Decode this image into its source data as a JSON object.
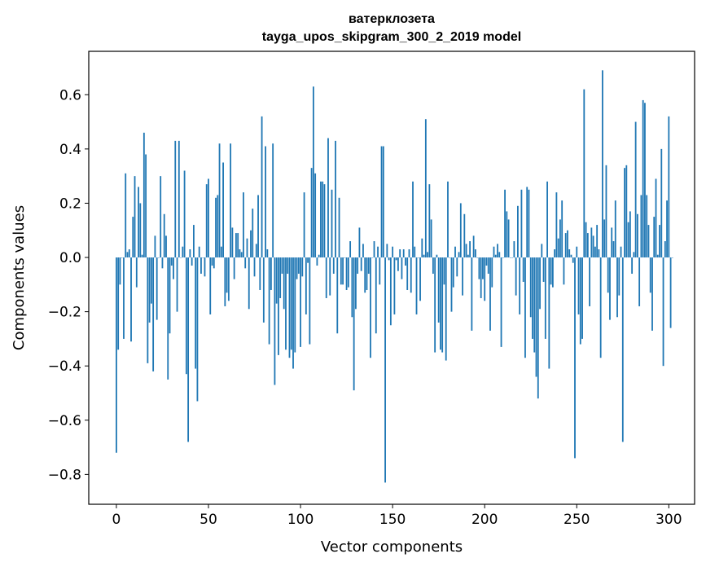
{
  "chart_data": {
    "type": "bar",
    "title": "ватерклозета",
    "subtitle": "tayga_upos_skipgram_300_2_2019 model",
    "xlabel": "Vector components",
    "ylabel": "Components values",
    "xlim": [
      -15,
      314
    ],
    "ylim": [
      -0.91,
      0.76
    ],
    "xticks": [
      0,
      50,
      100,
      150,
      200,
      250,
      300
    ],
    "yticks": [
      -0.8,
      -0.6,
      -0.4,
      -0.2,
      0.0,
      0.2,
      0.4,
      0.6
    ],
    "ytick_labels": [
      "−0.8",
      "−0.6",
      "−0.4",
      "−0.2",
      "0.0",
      "0.2",
      "0.4",
      "0.6"
    ],
    "bar_color": "#1f77b4",
    "grid": false,
    "values": [
      -0.72,
      -0.34,
      -0.1,
      0.0,
      -0.3,
      0.31,
      0.02,
      0.03,
      -0.31,
      0.15,
      0.3,
      -0.11,
      0.26,
      0.2,
      0.01,
      0.46,
      0.38,
      -0.39,
      -0.24,
      -0.17,
      -0.42,
      0.08,
      -0.23,
      0.0,
      0.3,
      -0.04,
      0.16,
      0.08,
      -0.45,
      -0.28,
      -0.03,
      -0.08,
      0.43,
      -0.2,
      0.43,
      0.0,
      0.04,
      0.32,
      -0.43,
      -0.68,
      0.03,
      -0.03,
      0.12,
      -0.41,
      -0.53,
      0.04,
      -0.06,
      0.0,
      -0.07,
      0.27,
      0.29,
      -0.21,
      -0.03,
      -0.04,
      0.22,
      0.23,
      0.42,
      0.04,
      0.35,
      -0.18,
      -0.13,
      -0.16,
      0.42,
      0.11,
      -0.08,
      0.09,
      0.09,
      0.03,
      0.02,
      0.24,
      -0.04,
      0.07,
      -0.19,
      0.1,
      0.18,
      -0.07,
      0.05,
      0.23,
      -0.12,
      0.52,
      -0.24,
      0.41,
      0.03,
      -0.32,
      -0.12,
      0.42,
      -0.47,
      -0.17,
      -0.36,
      -0.15,
      -0.06,
      -0.19,
      -0.34,
      -0.06,
      -0.37,
      -0.34,
      -0.41,
      -0.35,
      -0.08,
      -0.06,
      -0.33,
      -0.07,
      0.24,
      -0.21,
      -0.02,
      -0.32,
      0.33,
      0.63,
      0.31,
      -0.03,
      0.01,
      0.28,
      0.28,
      0.27,
      -0.15,
      0.44,
      -0.14,
      0.25,
      -0.06,
      0.43,
      -0.28,
      0.22,
      -0.1,
      -0.1,
      0.0,
      -0.12,
      -0.11,
      0.06,
      -0.22,
      -0.49,
      -0.19,
      -0.06,
      0.11,
      -0.05,
      0.05,
      -0.13,
      -0.12,
      -0.06,
      -0.37,
      0.0,
      0.06,
      -0.28,
      0.04,
      -0.1,
      0.41,
      0.41,
      -0.83,
      0.05,
      -0.01,
      -0.25,
      0.04,
      -0.21,
      -0.01,
      -0.05,
      0.03,
      -0.08,
      0.03,
      -0.03,
      -0.12,
      0.03,
      -0.13,
      0.28,
      0.04,
      -0.21,
      0.0,
      -0.16,
      0.07,
      0.01,
      0.51,
      0.02,
      0.27,
      0.14,
      -0.06,
      -0.35,
      0.01,
      -0.24,
      -0.34,
      -0.35,
      -0.1,
      -0.38,
      0.28,
      0.0,
      -0.2,
      -0.11,
      0.04,
      -0.07,
      0.02,
      0.2,
      -0.14,
      0.16,
      0.05,
      0.01,
      0.06,
      -0.27,
      0.08,
      0.03,
      0.0,
      -0.08,
      -0.15,
      -0.08,
      -0.16,
      -0.03,
      -0.06,
      -0.27,
      -0.11,
      0.04,
      0.01,
      0.05,
      0.02,
      -0.33,
      0.0,
      0.25,
      0.17,
      0.14,
      0.0,
      0.0,
      0.06,
      -0.14,
      0.19,
      -0.21,
      0.25,
      -0.09,
      -0.37,
      0.26,
      0.25,
      -0.22,
      -0.3,
      -0.35,
      -0.44,
      -0.52,
      -0.19,
      0.05,
      -0.09,
      -0.3,
      0.28,
      -0.41,
      -0.1,
      -0.11,
      0.03,
      0.24,
      0.07,
      0.14,
      0.21,
      -0.1,
      0.09,
      0.1,
      0.03,
      0.01,
      -0.02,
      -0.74,
      0.04,
      -0.21,
      -0.32,
      -0.3,
      0.62,
      0.13,
      0.09,
      -0.18,
      0.11,
      0.08,
      0.04,
      0.12,
      0.03,
      -0.37,
      0.69,
      0.14,
      0.34,
      -0.13,
      -0.23,
      0.11,
      0.06,
      0.21,
      -0.22,
      -0.14,
      0.04,
      -0.68,
      0.33,
      0.34,
      0.13,
      0.17,
      -0.06,
      0.02,
      0.5,
      0.16,
      -0.18,
      0.23,
      0.58,
      0.57,
      0.23,
      0.12,
      -0.13,
      -0.27,
      0.15,
      0.29,
      0.01,
      0.12,
      0.4,
      -0.4,
      0.06,
      0.21,
      0.52,
      -0.26,
      0.0
    ]
  }
}
